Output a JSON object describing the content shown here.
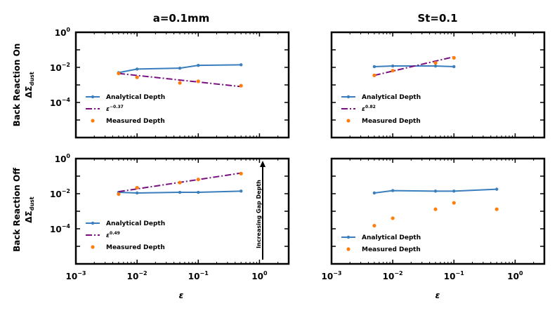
{
  "figure": {
    "col_titles": [
      "a=0.1mm",
      "St=0.1"
    ],
    "row_labels": [
      "Back Reaction On",
      "Back Reaction Off"
    ],
    "ylabel_base": "ΔΣ",
    "ylabel_sub": "dust",
    "xlabel": "ε",
    "x_ticks": [
      {
        "base": "10",
        "exp": "−3"
      },
      {
        "base": "10",
        "exp": "−2"
      },
      {
        "base": "10",
        "exp": "−1"
      },
      {
        "base": "10",
        "exp": "0"
      }
    ],
    "y_ticks": [
      {
        "base": "10",
        "exp": "0"
      },
      {
        "base": "10",
        "exp": "−2"
      },
      {
        "base": "10",
        "exp": "−4"
      }
    ],
    "legend_analytical": "Analytical Depth",
    "legend_measured": "Measured Depth",
    "legend_fit_base": "ε",
    "annotation": "Increasing Gap Depth",
    "colors": {
      "analytical": "#3a7ebd",
      "fit": "#7b0f82",
      "measured": "#ff7f0e"
    }
  },
  "chart_data": [
    {
      "type": "line",
      "title": "a=0.1mm",
      "ylabel": "Back Reaction On ΔΣdust",
      "xlabel": "ε",
      "xscale": "log",
      "yscale": "log",
      "xlim": [
        0.001,
        3
      ],
      "ylim": [
        1e-06,
        1
      ],
      "legend_position": "lower-left",
      "fit_exponent": "−0.37",
      "series": [
        {
          "name": "Analytical Depth",
          "x": [
            0.005,
            0.01,
            0.05,
            0.1,
            0.5
          ],
          "y": [
            0.005,
            0.008,
            0.009,
            0.013,
            0.014
          ]
        },
        {
          "name": "fit",
          "x": [
            0.005,
            0.5
          ],
          "y": [
            0.0045,
            0.0008
          ]
        },
        {
          "name": "Measured Depth",
          "x": [
            0.005,
            0.01,
            0.05,
            0.1,
            0.5
          ],
          "y": [
            0.0045,
            0.0027,
            0.0013,
            0.0016,
            0.0009
          ]
        }
      ]
    },
    {
      "type": "line",
      "title": "St=0.1",
      "ylabel": "",
      "xlabel": "ε",
      "xscale": "log",
      "yscale": "log",
      "xlim": [
        0.001,
        3
      ],
      "ylim": [
        1e-06,
        1
      ],
      "legend_position": "lower-left",
      "fit_exponent": "0.82",
      "series": [
        {
          "name": "Analytical Depth",
          "x": [
            0.005,
            0.01,
            0.05,
            0.1
          ],
          "y": [
            0.011,
            0.012,
            0.012,
            0.011
          ]
        },
        {
          "name": "fit",
          "x": [
            0.005,
            0.1
          ],
          "y": [
            0.0035,
            0.04
          ]
        },
        {
          "name": "Measured Depth",
          "x": [
            0.005,
            0.01,
            0.05,
            0.1
          ],
          "y": [
            0.0035,
            0.0065,
            0.018,
            0.035
          ]
        }
      ]
    },
    {
      "type": "line",
      "title": "",
      "ylabel": "Back Reaction Off ΔΣdust",
      "xlabel": "ε",
      "xscale": "log",
      "yscale": "log",
      "xlim": [
        0.001,
        3
      ],
      "ylim": [
        1e-06,
        1
      ],
      "legend_position": "lower-left",
      "fit_exponent": "0.49",
      "series": [
        {
          "name": "Analytical Depth",
          "x": [
            0.005,
            0.01,
            0.05,
            0.1,
            0.5
          ],
          "y": [
            0.012,
            0.011,
            0.012,
            0.012,
            0.014
          ]
        },
        {
          "name": "fit",
          "x": [
            0.005,
            0.5
          ],
          "y": [
            0.013,
            0.15
          ]
        },
        {
          "name": "Measured Depth",
          "x": [
            0.005,
            0.01,
            0.05,
            0.1,
            0.5
          ],
          "y": [
            0.0095,
            0.022,
            0.043,
            0.065,
            0.14
          ]
        }
      ]
    },
    {
      "type": "line",
      "title": "",
      "ylabel": "",
      "xlabel": "ε",
      "xscale": "log",
      "yscale": "log",
      "xlim": [
        0.001,
        3
      ],
      "ylim": [
        1e-06,
        1
      ],
      "legend_position": "lower-left",
      "fit_exponent": null,
      "series": [
        {
          "name": "Analytical Depth",
          "x": [
            0.005,
            0.01,
            0.05,
            0.1,
            0.5
          ],
          "y": [
            0.011,
            0.015,
            0.014,
            0.014,
            0.018
          ]
        },
        {
          "name": "Measured Depth",
          "x": [
            0.005,
            0.01,
            0.05,
            0.1,
            0.5
          ],
          "y": [
            0.00015,
            0.0004,
            0.0013,
            0.003,
            0.0013
          ]
        }
      ]
    }
  ]
}
